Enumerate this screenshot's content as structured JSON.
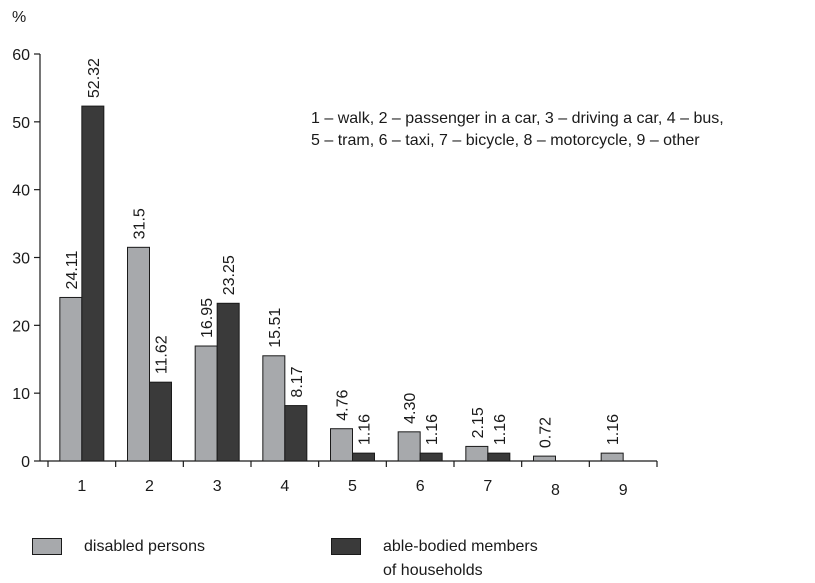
{
  "chart_data": {
    "type": "bar",
    "y_unit_label": "%",
    "ylim": [
      0,
      60
    ],
    "yticks": [
      0,
      10,
      20,
      30,
      40,
      50,
      60
    ],
    "categories": [
      "1",
      "2",
      "3",
      "4",
      "5",
      "6",
      "7",
      "8",
      "9"
    ],
    "series": [
      {
        "name": "disabled persons",
        "color": "#a7a9ac",
        "values": [
          24.11,
          31.5,
          16.95,
          15.51,
          4.76,
          4.3,
          2.15,
          0.72,
          1.16
        ],
        "labels": [
          "24.11",
          "31.5",
          "16.95",
          "15.51",
          "4.76",
          "4.30",
          "2.15",
          "0.72",
          "1.16"
        ]
      },
      {
        "name": "able-bodied members of households",
        "color": "#3a3a3a",
        "values": [
          52.32,
          11.62,
          23.25,
          8.17,
          1.16,
          1.16,
          1.16,
          null,
          null
        ],
        "labels": [
          "52.32",
          "11.62",
          "23.25",
          "8.17",
          "1.16",
          "1.16",
          "1.16",
          "",
          ""
        ]
      }
    ],
    "annotation_lines": [
      "1 – walk, 2 – passenger in a car, 3 – driving a car, 4 – bus,",
      "5 – tram, 6 – taxi, 7 – bicycle, 8 – motorcycle, 9 – other"
    ],
    "legend_position": "bottom",
    "grid": false
  },
  "legend": {
    "item1": {
      "label": "disabled persons"
    },
    "item2": {
      "line1": "able-bodied members",
      "line2": "of households"
    }
  }
}
